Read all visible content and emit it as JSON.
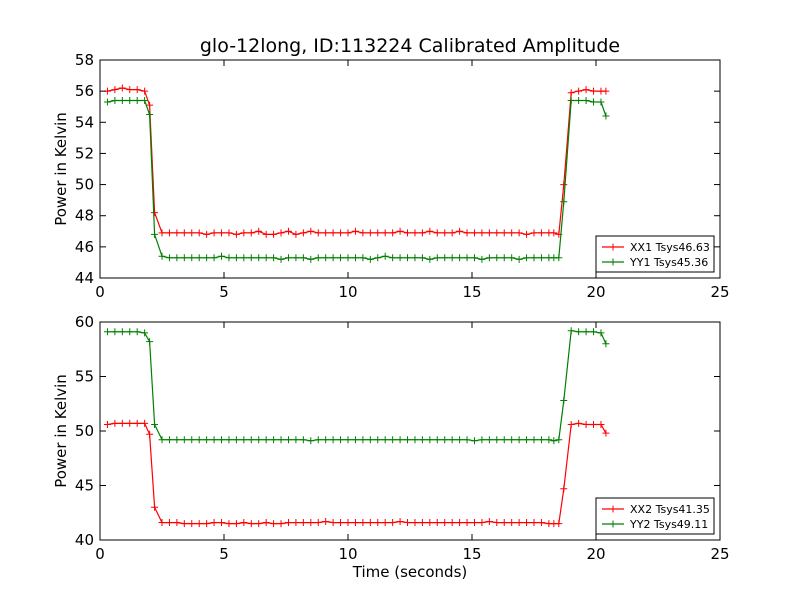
{
  "chart_data": [
    {
      "type": "line",
      "title": "glo-12long, ID:113224 Calibrated Amplitude",
      "xlabel": "",
      "ylabel": "Power in Kelvin",
      "xlim": [
        0,
        25
      ],
      "ylim": [
        44,
        58
      ],
      "xticks": [
        "0",
        "5",
        "10",
        "15",
        "20",
        "25"
      ],
      "yticks": [
        "44",
        "46",
        "48",
        "50",
        "52",
        "54",
        "56",
        "58"
      ],
      "legend_position": "lower-right",
      "grid": false,
      "x": [
        0.3,
        0.6,
        0.9,
        1.2,
        1.5,
        1.8,
        2.0,
        2.2,
        2.5,
        2.8,
        3.1,
        3.4,
        3.7,
        4.0,
        4.3,
        4.6,
        4.9,
        5.2,
        5.5,
        5.8,
        6.1,
        6.4,
        6.7,
        7.0,
        7.3,
        7.6,
        7.9,
        8.2,
        8.5,
        8.8,
        9.1,
        9.4,
        9.7,
        10.0,
        10.3,
        10.6,
        10.9,
        11.2,
        11.5,
        11.8,
        12.1,
        12.4,
        12.7,
        13.0,
        13.3,
        13.6,
        13.9,
        14.2,
        14.5,
        14.8,
        15.1,
        15.4,
        15.7,
        16.0,
        16.3,
        16.6,
        16.9,
        17.2,
        17.5,
        17.8,
        18.1,
        18.3,
        18.5,
        18.7,
        19.0,
        19.3,
        19.6,
        19.9,
        20.2,
        20.4
      ],
      "series": [
        {
          "name": "XX1 Tsys46.63",
          "color": "#ff0000",
          "values": [
            56.0,
            56.1,
            56.2,
            56.1,
            56.1,
            56.0,
            55.1,
            48.2,
            46.9,
            46.9,
            46.9,
            46.9,
            46.9,
            46.9,
            46.8,
            46.9,
            46.9,
            46.9,
            46.8,
            46.9,
            46.9,
            47.0,
            46.8,
            46.8,
            46.9,
            47.0,
            46.8,
            46.9,
            47.0,
            46.9,
            46.9,
            46.9,
            46.9,
            46.9,
            47.0,
            46.9,
            46.9,
            46.9,
            46.9,
            46.9,
            47.0,
            46.9,
            46.9,
            46.9,
            47.0,
            46.9,
            46.9,
            46.9,
            47.0,
            46.9,
            46.9,
            46.9,
            46.9,
            46.9,
            46.9,
            46.9,
            46.9,
            46.8,
            46.9,
            46.9,
            46.9,
            46.9,
            46.8,
            50.0,
            55.9,
            56.0,
            56.1,
            56.0,
            56.0,
            56.0
          ]
        },
        {
          "name": "YY1 Tsys45.36",
          "color": "#008000",
          "values": [
            55.3,
            55.4,
            55.4,
            55.4,
            55.4,
            55.4,
            54.5,
            46.8,
            45.4,
            45.3,
            45.3,
            45.3,
            45.3,
            45.3,
            45.3,
            45.3,
            45.4,
            45.3,
            45.3,
            45.3,
            45.3,
            45.3,
            45.3,
            45.3,
            45.2,
            45.3,
            45.3,
            45.3,
            45.2,
            45.3,
            45.3,
            45.3,
            45.3,
            45.3,
            45.3,
            45.3,
            45.2,
            45.3,
            45.4,
            45.3,
            45.3,
            45.3,
            45.3,
            45.3,
            45.2,
            45.3,
            45.3,
            45.3,
            45.3,
            45.3,
            45.3,
            45.2,
            45.3,
            45.3,
            45.3,
            45.3,
            45.2,
            45.3,
            45.3,
            45.3,
            45.3,
            45.3,
            45.3,
            48.9,
            55.4,
            55.4,
            55.4,
            55.3,
            55.3,
            54.4
          ]
        }
      ]
    },
    {
      "type": "line",
      "title": "",
      "xlabel": "Time (seconds)",
      "ylabel": "Power in Kelvin",
      "xlim": [
        0,
        25
      ],
      "ylim": [
        40,
        60
      ],
      "xticks": [
        "0",
        "5",
        "10",
        "15",
        "20",
        "25"
      ],
      "yticks": [
        "40",
        "45",
        "50",
        "55",
        "60"
      ],
      "legend_position": "lower-right",
      "grid": false,
      "x": [
        0.3,
        0.6,
        0.9,
        1.2,
        1.5,
        1.8,
        2.0,
        2.2,
        2.5,
        2.8,
        3.1,
        3.4,
        3.7,
        4.0,
        4.3,
        4.6,
        4.9,
        5.2,
        5.5,
        5.8,
        6.1,
        6.4,
        6.7,
        7.0,
        7.3,
        7.6,
        7.9,
        8.2,
        8.5,
        8.8,
        9.1,
        9.4,
        9.7,
        10.0,
        10.3,
        10.6,
        10.9,
        11.2,
        11.5,
        11.8,
        12.1,
        12.4,
        12.7,
        13.0,
        13.3,
        13.6,
        13.9,
        14.2,
        14.5,
        14.8,
        15.1,
        15.4,
        15.7,
        16.0,
        16.3,
        16.6,
        16.9,
        17.2,
        17.5,
        17.8,
        18.1,
        18.3,
        18.5,
        18.7,
        19.0,
        19.3,
        19.6,
        19.9,
        20.2,
        20.4
      ],
      "series": [
        {
          "name": "XX2 Tsys41.35",
          "color": "#ff0000",
          "values": [
            50.6,
            50.7,
            50.7,
            50.7,
            50.7,
            50.7,
            49.7,
            43.0,
            41.6,
            41.6,
            41.6,
            41.5,
            41.5,
            41.5,
            41.5,
            41.6,
            41.6,
            41.5,
            41.5,
            41.6,
            41.5,
            41.5,
            41.6,
            41.5,
            41.5,
            41.6,
            41.6,
            41.6,
            41.6,
            41.6,
            41.7,
            41.6,
            41.6,
            41.6,
            41.6,
            41.6,
            41.6,
            41.6,
            41.6,
            41.6,
            41.7,
            41.6,
            41.6,
            41.6,
            41.6,
            41.6,
            41.6,
            41.6,
            41.6,
            41.6,
            41.6,
            41.6,
            41.7,
            41.6,
            41.6,
            41.6,
            41.6,
            41.6,
            41.6,
            41.6,
            41.5,
            41.5,
            41.5,
            44.7,
            50.6,
            50.7,
            50.6,
            50.6,
            50.6,
            49.8
          ]
        },
        {
          "name": "YY2 Tsys49.11",
          "color": "#008000",
          "values": [
            59.1,
            59.1,
            59.1,
            59.1,
            59.1,
            59.0,
            58.2,
            50.6,
            49.2,
            49.2,
            49.2,
            49.2,
            49.2,
            49.2,
            49.2,
            49.2,
            49.2,
            49.2,
            49.2,
            49.2,
            49.2,
            49.2,
            49.2,
            49.2,
            49.2,
            49.2,
            49.2,
            49.2,
            49.1,
            49.2,
            49.2,
            49.2,
            49.2,
            49.2,
            49.2,
            49.2,
            49.2,
            49.2,
            49.2,
            49.2,
            49.2,
            49.2,
            49.2,
            49.2,
            49.2,
            49.2,
            49.2,
            49.2,
            49.2,
            49.2,
            49.1,
            49.2,
            49.2,
            49.2,
            49.2,
            49.2,
            49.2,
            49.2,
            49.2,
            49.2,
            49.2,
            49.1,
            49.2,
            52.8,
            59.2,
            59.1,
            59.1,
            59.1,
            59.0,
            58.0
          ]
        }
      ]
    }
  ]
}
